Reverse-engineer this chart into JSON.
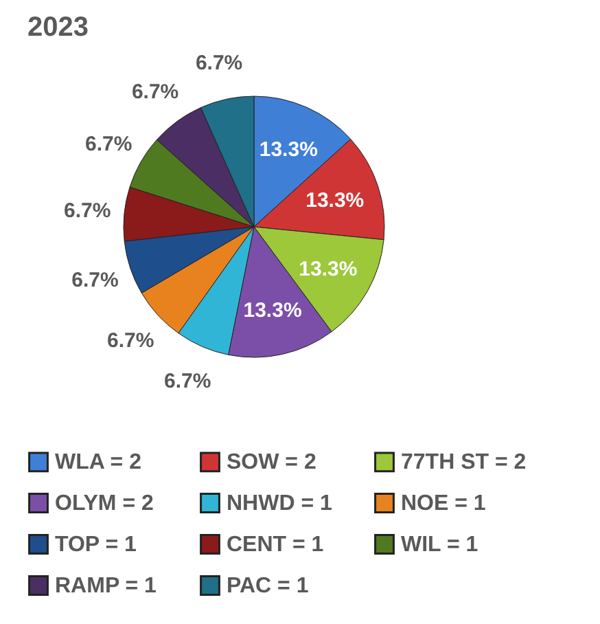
{
  "chart_data": {
    "type": "pie",
    "title": "2023",
    "categories": [
      "WLA = 2",
      "SOW = 2",
      "77TH ST = 2",
      "OLYM = 2",
      "NHWD = 1",
      "NOE  = 1",
      "TOP = 1",
      "CENT = 1",
      "WIL = 1",
      "RAMP = 1",
      "PAC = 1"
    ],
    "values": [
      13.3,
      13.3,
      13.3,
      13.3,
      6.7,
      6.7,
      6.7,
      6.7,
      6.7,
      6.7,
      6.7
    ],
    "value_labels": [
      "13.3%",
      "13.3%",
      "13.3%",
      "13.3%",
      "6.7%",
      "6.7%",
      "6.7%",
      "6.7%",
      "6.7%",
      "6.7%",
      "6.7%"
    ],
    "colors": [
      "#3f7fd6",
      "#d03535",
      "#9cc83a",
      "#7b4fa8",
      "#31b5d6",
      "#e8821e",
      "#1f4e8c",
      "#8b1a1a",
      "#4f7a1f",
      "#4b2e63",
      "#1f7088"
    ],
    "legend": "bottom"
  }
}
